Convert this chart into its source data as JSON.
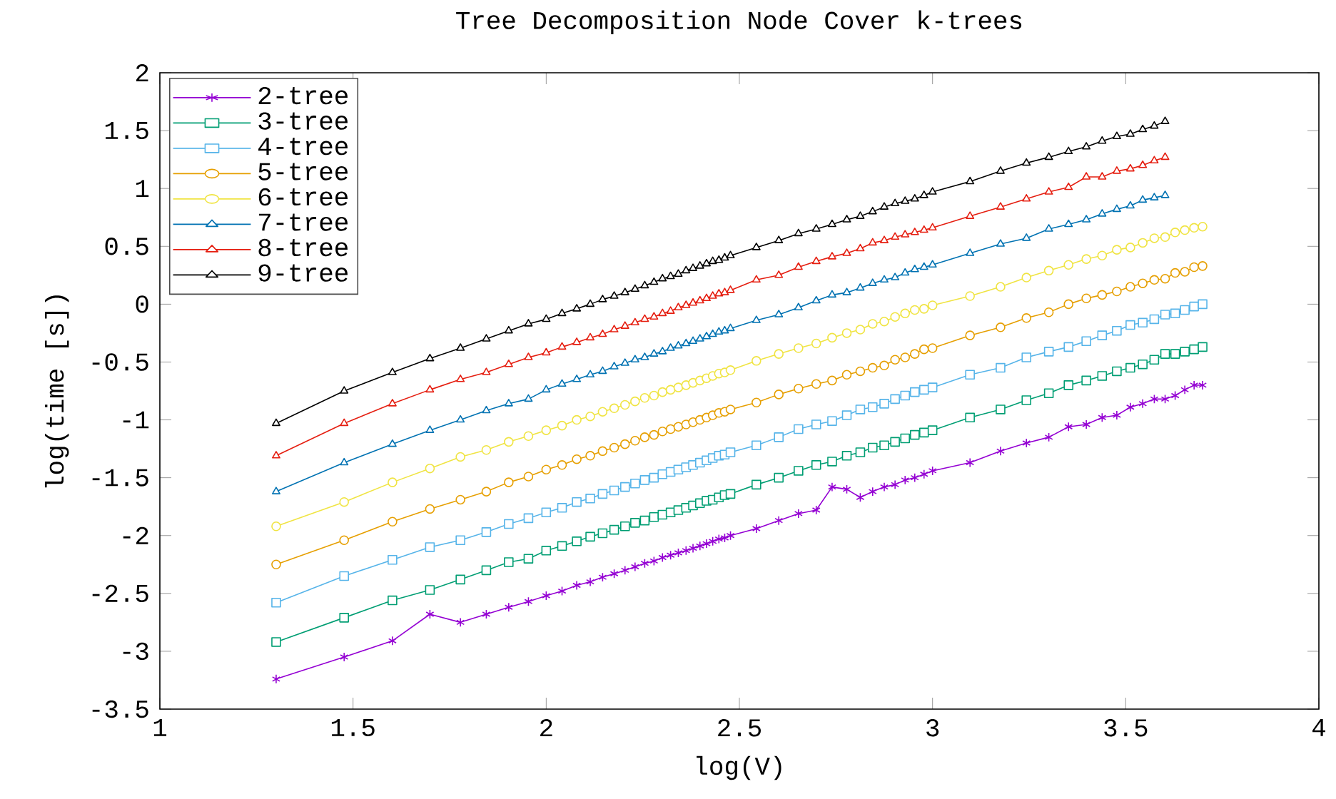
{
  "chart_data": {
    "type": "line",
    "title": "Tree Decomposition Node Cover k-trees",
    "xlabel": "log(V)",
    "ylabel": "log(time [s])",
    "x": [
      1.301,
      1.477,
      1.602,
      1.699,
      1.778,
      1.845,
      1.903,
      1.954,
      2.0,
      2.041,
      2.079,
      2.114,
      2.146,
      2.176,
      2.204,
      2.23,
      2.255,
      2.279,
      2.301,
      2.322,
      2.342,
      2.362,
      2.38,
      2.398,
      2.415,
      2.431,
      2.447,
      2.462,
      2.477,
      2.544,
      2.602,
      2.653,
      2.699,
      2.74,
      2.778,
      2.813,
      2.845,
      2.875,
      2.903,
      2.929,
      2.954,
      2.978,
      3.0,
      3.097,
      3.176,
      3.243,
      3.301,
      3.352,
      3.398,
      3.439,
      3.477,
      3.512,
      3.544,
      3.574,
      3.602,
      3.628,
      3.653,
      3.677,
      3.699
    ],
    "series": [
      {
        "name": "2-tree",
        "color": "#9400d3",
        "marker": "cross",
        "values": [
          -3.24,
          -3.05,
          -2.91,
          -2.68,
          -2.75,
          -2.68,
          -2.62,
          -2.57,
          -2.52,
          -2.48,
          -2.43,
          -2.4,
          -2.36,
          -2.33,
          -2.3,
          -2.27,
          -2.24,
          -2.22,
          -2.19,
          -2.17,
          -2.15,
          -2.13,
          -2.11,
          -2.09,
          -2.07,
          -2.05,
          -2.03,
          -2.02,
          -2.0,
          -1.94,
          -1.87,
          -1.81,
          -1.78,
          -1.58,
          -1.6,
          -1.67,
          -1.62,
          -1.58,
          -1.56,
          -1.52,
          -1.5,
          -1.47,
          -1.44,
          -1.37,
          -1.27,
          -1.2,
          -1.15,
          -1.06,
          -1.04,
          -0.98,
          -0.96,
          -0.89,
          -0.86,
          -0.82,
          -0.82,
          -0.79,
          -0.74,
          -0.7,
          -0.7
        ]
      },
      {
        "name": "3-tree",
        "color": "#009e73",
        "marker": "square",
        "values": [
          -2.92,
          -2.71,
          -2.56,
          -2.47,
          -2.38,
          -2.3,
          -2.23,
          -2.2,
          -2.13,
          -2.09,
          -2.05,
          -2.01,
          -1.98,
          -1.95,
          -1.92,
          -1.89,
          -1.87,
          -1.84,
          -1.82,
          -1.8,
          -1.78,
          -1.76,
          -1.74,
          -1.72,
          -1.7,
          -1.69,
          -1.67,
          -1.65,
          -1.64,
          -1.56,
          -1.5,
          -1.44,
          -1.39,
          -1.36,
          -1.31,
          -1.28,
          -1.24,
          -1.22,
          -1.19,
          -1.16,
          -1.13,
          -1.11,
          -1.09,
          -0.98,
          -0.91,
          -0.83,
          -0.77,
          -0.7,
          -0.66,
          -0.62,
          -0.58,
          -0.55,
          -0.52,
          -0.48,
          -0.43,
          -0.43,
          -0.41,
          -0.39,
          -0.37
        ]
      },
      {
        "name": "4-tree",
        "color": "#56b4e9",
        "marker": "square",
        "values": [
          -2.58,
          -2.35,
          -2.21,
          -2.1,
          -2.04,
          -1.97,
          -1.9,
          -1.85,
          -1.8,
          -1.76,
          -1.71,
          -1.68,
          -1.64,
          -1.61,
          -1.58,
          -1.55,
          -1.52,
          -1.5,
          -1.47,
          -1.45,
          -1.43,
          -1.41,
          -1.39,
          -1.37,
          -1.35,
          -1.33,
          -1.31,
          -1.3,
          -1.28,
          -1.22,
          -1.15,
          -1.08,
          -1.04,
          -1.01,
          -0.96,
          -0.91,
          -0.89,
          -0.86,
          -0.82,
          -0.79,
          -0.76,
          -0.74,
          -0.72,
          -0.61,
          -0.55,
          -0.46,
          -0.41,
          -0.37,
          -0.32,
          -0.27,
          -0.23,
          -0.18,
          -0.16,
          -0.13,
          -0.09,
          -0.08,
          -0.05,
          -0.02,
          0.0
        ]
      },
      {
        "name": "5-tree",
        "color": "#e69f00",
        "marker": "circle",
        "values": [
          -2.25,
          -2.04,
          -1.88,
          -1.77,
          -1.69,
          -1.62,
          -1.54,
          -1.49,
          -1.43,
          -1.39,
          -1.34,
          -1.31,
          -1.27,
          -1.24,
          -1.21,
          -1.18,
          -1.15,
          -1.13,
          -1.1,
          -1.08,
          -1.06,
          -1.04,
          -1.02,
          -1.0,
          -0.98,
          -0.96,
          -0.94,
          -0.93,
          -0.91,
          -0.85,
          -0.78,
          -0.73,
          -0.69,
          -0.66,
          -0.61,
          -0.58,
          -0.55,
          -0.53,
          -0.48,
          -0.46,
          -0.43,
          -0.39,
          -0.38,
          -0.27,
          -0.2,
          -0.12,
          -0.07,
          0.0,
          0.05,
          0.08,
          0.11,
          0.15,
          0.18,
          0.21,
          0.22,
          0.27,
          0.28,
          0.32,
          0.33
        ]
      },
      {
        "name": "6-tree",
        "color": "#f0e442",
        "marker": "circle",
        "values": [
          -1.92,
          -1.71,
          -1.54,
          -1.42,
          -1.32,
          -1.26,
          -1.19,
          -1.14,
          -1.09,
          -1.05,
          -1.0,
          -0.97,
          -0.93,
          -0.9,
          -0.87,
          -0.84,
          -0.81,
          -0.79,
          -0.76,
          -0.74,
          -0.72,
          -0.7,
          -0.68,
          -0.66,
          -0.64,
          -0.62,
          -0.6,
          -0.59,
          -0.57,
          -0.49,
          -0.43,
          -0.38,
          -0.34,
          -0.29,
          -0.25,
          -0.22,
          -0.17,
          -0.15,
          -0.11,
          -0.08,
          -0.05,
          -0.04,
          -0.01,
          0.07,
          0.15,
          0.23,
          0.29,
          0.34,
          0.39,
          0.42,
          0.47,
          0.49,
          0.53,
          0.57,
          0.58,
          0.62,
          0.64,
          0.66,
          0.67
        ]
      },
      {
        "name": "7-tree",
        "color": "#0072b2",
        "marker": "triangle",
        "values": [
          -1.62,
          -1.37,
          -1.21,
          -1.09,
          -1.0,
          -0.92,
          -0.86,
          -0.82,
          -0.74,
          -0.69,
          -0.65,
          -0.61,
          -0.58,
          -0.54,
          -0.51,
          -0.48,
          -0.46,
          -0.43,
          -0.41,
          -0.38,
          -0.36,
          -0.34,
          -0.32,
          -0.3,
          -0.28,
          -0.26,
          -0.24,
          -0.23,
          -0.21,
          -0.14,
          -0.09,
          -0.03,
          0.03,
          0.08,
          0.1,
          0.14,
          0.18,
          0.21,
          0.23,
          0.27,
          0.3,
          0.32,
          0.34,
          0.44,
          0.52,
          0.57,
          0.65,
          0.69,
          0.73,
          0.78,
          0.82,
          0.85,
          0.9,
          0.92,
          0.94,
          null,
          null,
          null,
          null
        ]
      },
      {
        "name": "8-tree",
        "color": "#e51e10",
        "marker": "triangle",
        "values": [
          -1.31,
          -1.03,
          -0.86,
          -0.74,
          -0.65,
          -0.59,
          -0.52,
          -0.46,
          -0.42,
          -0.37,
          -0.33,
          -0.29,
          -0.26,
          -0.22,
          -0.19,
          -0.16,
          -0.13,
          -0.11,
          -0.08,
          -0.06,
          -0.03,
          -0.01,
          0.01,
          0.03,
          0.05,
          0.07,
          0.09,
          0.1,
          0.12,
          0.21,
          0.25,
          0.32,
          0.37,
          0.41,
          0.44,
          0.48,
          0.53,
          0.55,
          0.58,
          0.6,
          0.62,
          0.64,
          0.66,
          0.76,
          0.84,
          0.91,
          0.97,
          1.01,
          1.1,
          1.1,
          1.15,
          1.17,
          1.2,
          1.24,
          1.27,
          null,
          null,
          null,
          null
        ]
      },
      {
        "name": "9-tree",
        "color": "#000000",
        "marker": "triangle",
        "values": [
          -1.03,
          -0.75,
          -0.59,
          -0.47,
          -0.38,
          -0.3,
          -0.23,
          -0.17,
          -0.13,
          -0.08,
          -0.04,
          0.0,
          0.04,
          0.07,
          0.1,
          0.13,
          0.16,
          0.19,
          0.22,
          0.24,
          0.26,
          0.29,
          0.31,
          0.33,
          0.35,
          0.37,
          0.38,
          0.4,
          0.42,
          0.49,
          0.55,
          0.61,
          0.65,
          0.69,
          0.73,
          0.76,
          0.8,
          0.84,
          0.87,
          0.89,
          0.91,
          0.94,
          0.97,
          1.06,
          1.15,
          1.22,
          1.27,
          1.32,
          1.36,
          1.41,
          1.45,
          1.47,
          1.51,
          1.54,
          1.58,
          null,
          null,
          null,
          null
        ]
      }
    ],
    "xlim": [
      1,
      4
    ],
    "xticks": [
      1,
      1.5,
      2,
      2.5,
      3,
      3.5,
      4
    ],
    "ylim": [
      -3.5,
      2
    ],
    "yticks": [
      -3.5,
      -3,
      -2.5,
      -2,
      -1.5,
      -1,
      -0.5,
      0,
      0.5,
      1,
      1.5,
      2
    ],
    "grid": false,
    "legend": "top left",
    "line_style": "solid"
  }
}
